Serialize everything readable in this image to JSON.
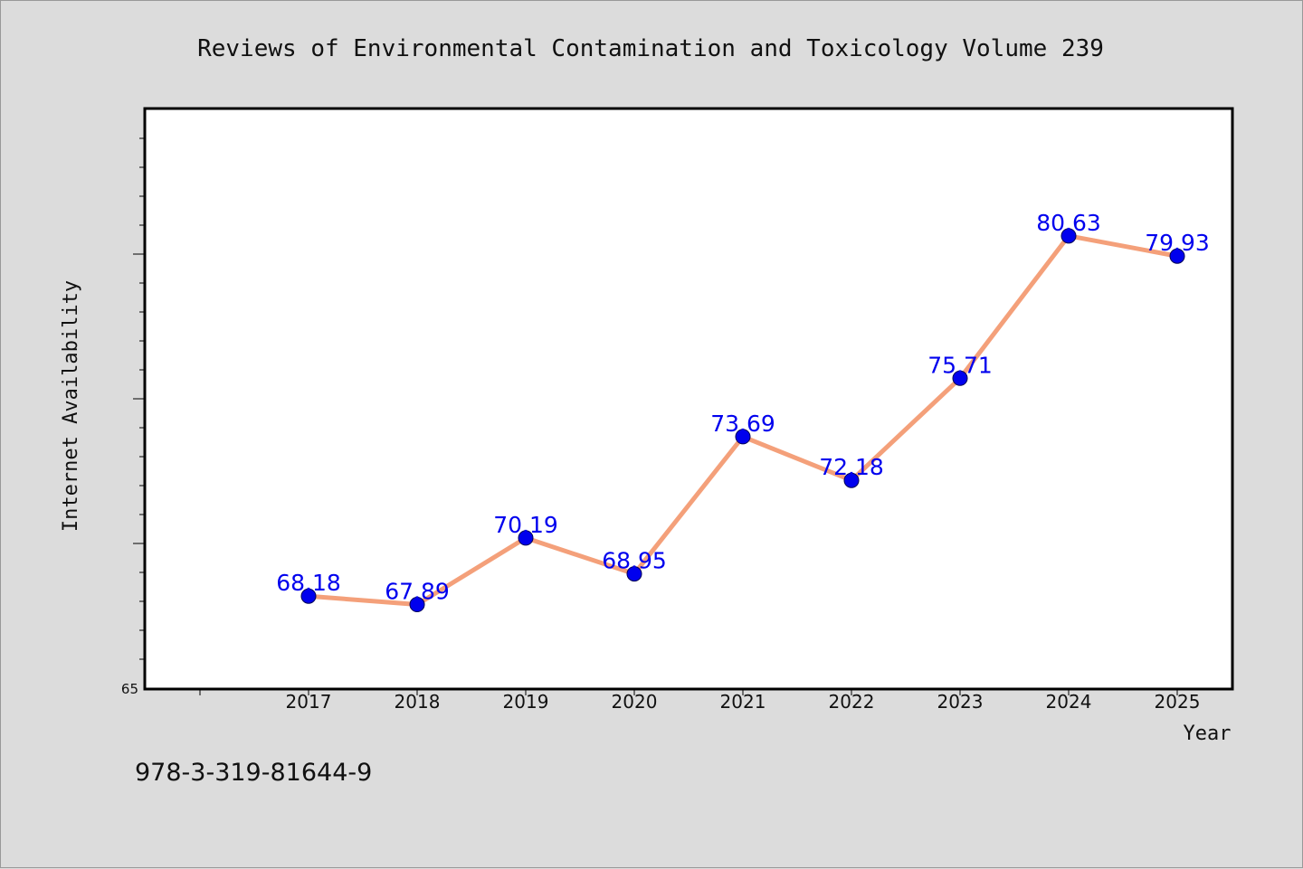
{
  "chart_data": {
    "type": "line",
    "title": "Reviews of Environmental Contamination and Toxicology Volume 239",
    "xlabel": "Year",
    "ylabel": "Internet Availability",
    "categories": [
      "2017",
      "2018",
      "2019",
      "2020",
      "2021",
      "2022",
      "2023",
      "2024",
      "2025"
    ],
    "series": [
      {
        "values": [
          68.18,
          67.89,
          70.19,
          68.95,
          73.69,
          72.18,
          75.71,
          80.63,
          79.93
        ],
        "labels": [
          "68.18",
          "67.89",
          "70.19",
          "68.95",
          "73.69",
          "72.18",
          "75.71",
          "80.63",
          "79.93"
        ]
      }
    ],
    "ylim": [
      65,
      85
    ],
    "yticks_labeled": [
      "65"
    ],
    "grid": false,
    "legend": "none"
  },
  "footer": {
    "isbn": "978-3-319-81644-9"
  },
  "colors": {
    "background": "#dcdcdc",
    "plot_background": "#ffffff",
    "line": "#f4a07a",
    "marker": "#0000ee",
    "data_label": "#0000ee",
    "axis": "#000000"
  }
}
